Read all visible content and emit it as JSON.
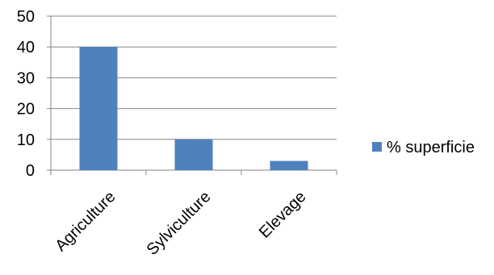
{
  "chart_data": {
    "type": "bar",
    "categories": [
      "Agriculture",
      "Sylviculture",
      "Elevage"
    ],
    "series": [
      {
        "name": "% superficie",
        "values": [
          40,
          10,
          3
        ],
        "color": "#4F81BD"
      }
    ],
    "yticks": [
      "0",
      "10",
      "20",
      "30",
      "40",
      "50"
    ],
    "ylim": [
      0,
      50
    ],
    "grid": true,
    "legend": "right",
    "title": "",
    "xlabel": "",
    "ylabel": ""
  }
}
